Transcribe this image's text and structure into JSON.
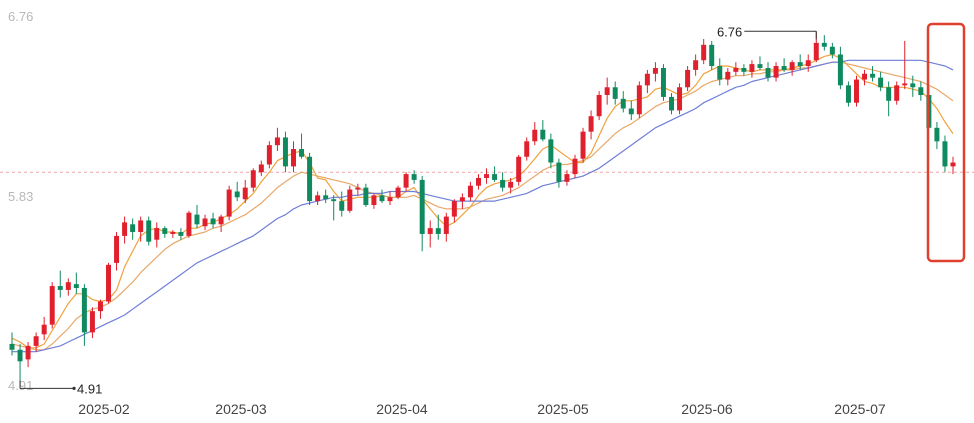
{
  "chart_data": {
    "type": "candlestick",
    "title": "",
    "xlabel": "",
    "ylabel": "",
    "ylim": [
      4.86,
      6.86
    ],
    "y_tick_labels": [
      "6.76",
      "5.83",
      "4.91"
    ],
    "x_tick_labels": [
      "2025-02",
      "2025-03",
      "2025-04",
      "2025-05",
      "2025-06",
      "2025-07"
    ],
    "reference_line": {
      "value": 6.03,
      "style": "dashed",
      "color": "#f2a3a3"
    },
    "annotations": {
      "high_label": "6.76",
      "low_label": "4.91"
    },
    "highlight_box": {
      "description": "last candles",
      "color": "#e0412f"
    },
    "colors": {
      "up": "#e0202d",
      "down": "#0f8a5f",
      "ma_fast": "#f0a23c",
      "ma_mid": "#e8a868",
      "ma_slow": "#6f7fd8"
    },
    "grid": false,
    "series": [
      {
        "name": "",
        "candles_ohlc": [
          [
            5.14,
            5.2,
            5.08,
            5.11
          ],
          [
            5.11,
            5.14,
            4.91,
            5.05
          ],
          [
            5.06,
            5.15,
            5.02,
            5.13
          ],
          [
            5.13,
            5.2,
            5.1,
            5.18
          ],
          [
            5.19,
            5.28,
            5.16,
            5.24
          ],
          [
            5.24,
            5.46,
            5.22,
            5.44
          ],
          [
            5.44,
            5.52,
            5.38,
            5.42
          ],
          [
            5.42,
            5.48,
            5.39,
            5.46
          ],
          [
            5.45,
            5.51,
            5.4,
            5.43
          ],
          [
            5.43,
            5.45,
            5.13,
            5.2
          ],
          [
            5.2,
            5.33,
            5.17,
            5.31
          ],
          [
            5.31,
            5.37,
            5.27,
            5.36
          ],
          [
            5.36,
            5.56,
            5.35,
            5.55
          ],
          [
            5.56,
            5.72,
            5.52,
            5.7
          ],
          [
            5.7,
            5.8,
            5.66,
            5.77
          ],
          [
            5.76,
            5.79,
            5.68,
            5.72
          ],
          [
            5.72,
            5.8,
            5.67,
            5.78
          ],
          [
            5.78,
            5.8,
            5.65,
            5.67
          ],
          [
            5.68,
            5.77,
            5.64,
            5.74
          ],
          [
            5.74,
            5.75,
            5.69,
            5.71
          ],
          [
            5.71,
            5.73,
            5.69,
            5.72
          ],
          [
            5.72,
            5.74,
            5.68,
            5.7
          ],
          [
            5.7,
            5.83,
            5.69,
            5.82
          ],
          [
            5.81,
            5.86,
            5.74,
            5.76
          ],
          [
            5.75,
            5.81,
            5.73,
            5.79
          ],
          [
            5.79,
            5.82,
            5.74,
            5.76
          ],
          [
            5.76,
            5.81,
            5.72,
            5.8
          ],
          [
            5.8,
            5.96,
            5.78,
            5.94
          ],
          [
            5.93,
            5.98,
            5.88,
            5.9
          ],
          [
            5.89,
            5.99,
            5.87,
            5.95
          ],
          [
            5.95,
            6.05,
            5.93,
            6.04
          ],
          [
            6.03,
            6.09,
            6.01,
            6.07
          ],
          [
            6.07,
            6.19,
            6.05,
            6.17
          ],
          [
            6.17,
            6.26,
            6.14,
            6.21
          ],
          [
            6.21,
            6.24,
            6.03,
            6.06
          ],
          [
            6.06,
            6.19,
            6.03,
            6.15
          ],
          [
            6.15,
            6.23,
            6.1,
            6.11
          ],
          [
            6.11,
            6.13,
            5.86,
            5.88
          ],
          [
            5.88,
            5.93,
            5.86,
            5.91
          ],
          [
            5.91,
            5.94,
            5.87,
            5.89
          ],
          [
            5.89,
            5.91,
            5.78,
            5.88
          ],
          [
            5.88,
            5.93,
            5.8,
            5.83
          ],
          [
            5.83,
            5.96,
            5.82,
            5.94
          ],
          [
            5.94,
            5.97,
            5.91,
            5.95
          ],
          [
            5.95,
            5.97,
            5.85,
            5.86
          ],
          [
            5.86,
            5.92,
            5.84,
            5.91
          ],
          [
            5.91,
            5.94,
            5.87,
            5.88
          ],
          [
            5.88,
            5.93,
            5.86,
            5.9
          ],
          [
            5.9,
            5.96,
            5.89,
            5.95
          ],
          [
            5.95,
            6.03,
            5.93,
            6.02
          ],
          [
            6.02,
            6.04,
            5.97,
            5.99
          ],
          [
            5.99,
            6.01,
            5.62,
            5.71
          ],
          [
            5.71,
            5.78,
            5.64,
            5.74
          ],
          [
            5.74,
            5.81,
            5.68,
            5.71
          ],
          [
            5.71,
            5.82,
            5.67,
            5.8
          ],
          [
            5.8,
            5.89,
            5.77,
            5.88
          ],
          [
            5.88,
            5.92,
            5.84,
            5.9
          ],
          [
            5.9,
            5.98,
            5.88,
            5.96
          ],
          [
            5.96,
            6.02,
            5.94,
            6.0
          ],
          [
            6.0,
            6.05,
            5.97,
            6.02
          ],
          [
            6.02,
            6.06,
            5.98,
            5.99
          ],
          [
            5.99,
            6.03,
            5.93,
            5.95
          ],
          [
            5.95,
            6.0,
            5.92,
            5.98
          ],
          [
            5.98,
            6.12,
            5.96,
            6.11
          ],
          [
            6.11,
            6.21,
            6.09,
            6.19
          ],
          [
            6.19,
            6.29,
            6.17,
            6.25
          ],
          [
            6.25,
            6.3,
            6.19,
            6.2
          ],
          [
            6.2,
            6.23,
            6.05,
            6.08
          ],
          [
            6.08,
            6.1,
            5.95,
            5.98
          ],
          [
            5.98,
            6.04,
            5.96,
            6.02
          ],
          [
            6.02,
            6.12,
            6.0,
            6.1
          ],
          [
            6.1,
            6.26,
            6.08,
            6.24
          ],
          [
            6.24,
            6.35,
            6.2,
            6.32
          ],
          [
            6.32,
            6.45,
            6.3,
            6.43
          ],
          [
            6.43,
            6.52,
            6.38,
            6.47
          ],
          [
            6.47,
            6.5,
            6.38,
            6.41
          ],
          [
            6.41,
            6.45,
            6.34,
            6.36
          ],
          [
            6.36,
            6.4,
            6.3,
            6.33
          ],
          [
            6.33,
            6.5,
            6.31,
            6.48
          ],
          [
            6.48,
            6.56,
            6.44,
            6.54
          ],
          [
            6.54,
            6.6,
            6.5,
            6.57
          ],
          [
            6.57,
            6.59,
            6.4,
            6.42
          ],
          [
            6.42,
            6.44,
            6.33,
            6.35
          ],
          [
            6.35,
            6.49,
            6.33,
            6.47
          ],
          [
            6.47,
            6.58,
            6.45,
            6.56
          ],
          [
            6.56,
            6.64,
            6.53,
            6.61
          ],
          [
            6.61,
            6.72,
            6.59,
            6.69
          ],
          [
            6.69,
            6.71,
            6.56,
            6.58
          ],
          [
            6.58,
            6.62,
            6.48,
            6.51
          ],
          [
            6.51,
            6.57,
            6.48,
            6.55
          ],
          [
            6.55,
            6.6,
            6.53,
            6.57
          ],
          [
            6.57,
            6.59,
            6.53,
            6.55
          ],
          [
            6.55,
            6.61,
            6.52,
            6.59
          ],
          [
            6.59,
            6.63,
            6.56,
            6.57
          ],
          [
            6.57,
            6.6,
            6.5,
            6.52
          ],
          [
            6.52,
            6.6,
            6.5,
            6.58
          ],
          [
            6.58,
            6.62,
            6.55,
            6.56
          ],
          [
            6.56,
            6.61,
            6.53,
            6.6
          ],
          [
            6.6,
            6.64,
            6.56,
            6.58
          ],
          [
            6.58,
            6.64,
            6.55,
            6.61
          ],
          [
            6.61,
            6.76,
            6.6,
            6.7
          ],
          [
            6.7,
            6.74,
            6.66,
            6.68
          ],
          [
            6.68,
            6.7,
            6.62,
            6.64
          ],
          [
            6.64,
            6.68,
            6.46,
            6.48
          ],
          [
            6.48,
            6.5,
            6.37,
            6.39
          ],
          [
            6.39,
            6.53,
            6.37,
            6.51
          ],
          [
            6.51,
            6.56,
            6.48,
            6.54
          ],
          [
            6.54,
            6.58,
            6.5,
            6.52
          ],
          [
            6.52,
            6.55,
            6.45,
            6.47
          ],
          [
            6.47,
            6.5,
            6.32,
            6.4
          ],
          [
            6.4,
            6.5,
            6.38,
            6.48
          ],
          [
            6.48,
            6.71,
            6.46,
            6.49
          ],
          [
            6.49,
            6.53,
            6.42,
            6.47
          ],
          [
            6.47,
            6.5,
            6.4,
            6.43
          ],
          [
            6.43,
            6.47,
            6.36,
            6.26
          ],
          [
            6.26,
            6.29,
            6.15,
            6.19
          ],
          [
            6.19,
            6.22,
            6.03,
            6.06
          ],
          [
            6.06,
            6.11,
            6.02,
            6.08
          ]
        ]
      }
    ],
    "moving_averages": [
      {
        "name": "",
        "values": [
          5.17,
          5.15,
          5.12,
          5.12,
          5.14,
          5.21,
          5.28,
          5.35,
          5.4,
          5.4,
          5.37,
          5.36,
          5.37,
          5.42,
          5.54,
          5.62,
          5.7,
          5.73,
          5.74,
          5.72,
          5.72,
          5.71,
          5.74,
          5.74,
          5.76,
          5.77,
          5.79,
          5.81,
          5.84,
          5.88,
          5.92,
          5.98,
          6.03,
          6.09,
          6.11,
          6.13,
          6.14,
          6.08,
          6.0,
          5.99,
          5.93,
          5.88,
          5.89,
          5.9,
          5.9,
          5.9,
          5.91,
          5.9,
          5.9,
          5.93,
          5.95,
          5.89,
          5.84,
          5.79,
          5.75,
          5.77,
          5.81,
          5.85,
          5.91,
          5.95,
          5.97,
          5.98,
          5.99,
          6.01,
          6.05,
          6.1,
          6.15,
          6.17,
          6.14,
          6.11,
          6.08,
          6.08,
          6.13,
          6.22,
          6.31,
          6.37,
          6.4,
          6.4,
          6.41,
          6.42,
          6.46,
          6.47,
          6.45,
          6.43,
          6.44,
          6.48,
          6.54,
          6.56,
          6.58,
          6.58,
          6.57,
          6.56,
          6.55,
          6.56,
          6.56,
          6.56,
          6.56,
          6.57,
          6.58,
          6.59,
          6.61,
          6.63,
          6.64,
          6.62,
          6.58,
          6.54,
          6.5,
          6.49,
          6.47,
          6.47,
          6.47,
          6.47,
          6.46,
          6.45,
          6.41,
          6.36,
          6.29,
          6.23
        ]
      },
      {
        "name": "",
        "values": [
          5.14,
          5.13,
          5.12,
          5.11,
          5.11,
          5.14,
          5.18,
          5.22,
          5.27,
          5.3,
          5.32,
          5.33,
          5.35,
          5.38,
          5.42,
          5.46,
          5.51,
          5.55,
          5.59,
          5.63,
          5.66,
          5.68,
          5.7,
          5.71,
          5.72,
          5.74,
          5.75,
          5.77,
          5.79,
          5.81,
          5.84,
          5.87,
          5.91,
          5.95,
          5.98,
          6.01,
          6.03,
          6.02,
          6.01,
          6.0,
          5.99,
          5.98,
          5.97,
          5.95,
          5.93,
          5.92,
          5.91,
          5.9,
          5.9,
          5.9,
          5.91,
          5.89,
          5.87,
          5.85,
          5.84,
          5.84,
          5.84,
          5.85,
          5.87,
          5.89,
          5.9,
          5.91,
          5.93,
          5.95,
          5.98,
          6.01,
          6.04,
          6.06,
          6.07,
          6.07,
          6.08,
          6.09,
          6.11,
          6.15,
          6.19,
          6.23,
          6.26,
          6.28,
          6.31,
          6.34,
          6.37,
          6.39,
          6.4,
          6.41,
          6.43,
          6.45,
          6.48,
          6.5,
          6.51,
          6.52,
          6.53,
          6.53,
          6.54,
          6.54,
          6.55,
          6.55,
          6.56,
          6.56,
          6.57,
          6.57,
          6.58,
          6.59,
          6.6,
          6.6,
          6.59,
          6.58,
          6.57,
          6.56,
          6.55,
          6.54,
          6.53,
          6.52,
          6.51,
          6.5,
          6.48,
          6.46,
          6.43,
          6.4
        ]
      },
      {
        "name": "",
        "values": [
          5.1,
          5.1,
          5.1,
          5.1,
          5.11,
          5.12,
          5.13,
          5.15,
          5.17,
          5.19,
          5.21,
          5.23,
          5.25,
          5.27,
          5.29,
          5.32,
          5.35,
          5.38,
          5.41,
          5.44,
          5.47,
          5.5,
          5.53,
          5.56,
          5.58,
          5.6,
          5.62,
          5.64,
          5.66,
          5.68,
          5.7,
          5.73,
          5.76,
          5.79,
          5.81,
          5.84,
          5.86,
          5.87,
          5.88,
          5.89,
          5.9,
          5.9,
          5.91,
          5.91,
          5.92,
          5.92,
          5.92,
          5.93,
          5.93,
          5.93,
          5.93,
          5.92,
          5.91,
          5.9,
          5.89,
          5.88,
          5.88,
          5.88,
          5.88,
          5.88,
          5.88,
          5.89,
          5.9,
          5.91,
          5.92,
          5.94,
          5.96,
          5.97,
          5.98,
          5.99,
          6.0,
          6.01,
          6.03,
          6.05,
          6.08,
          6.11,
          6.14,
          6.17,
          6.2,
          6.23,
          6.26,
          6.28,
          6.3,
          6.32,
          6.34,
          6.36,
          6.39,
          6.41,
          6.43,
          6.45,
          6.47,
          6.48,
          6.5,
          6.51,
          6.52,
          6.53,
          6.54,
          6.55,
          6.56,
          6.57,
          6.58,
          6.59,
          6.6,
          6.6,
          6.61,
          6.61,
          6.61,
          6.61,
          6.61,
          6.61,
          6.61,
          6.61,
          6.61,
          6.61,
          6.6,
          6.59,
          6.58,
          6.56
        ]
      }
    ]
  }
}
